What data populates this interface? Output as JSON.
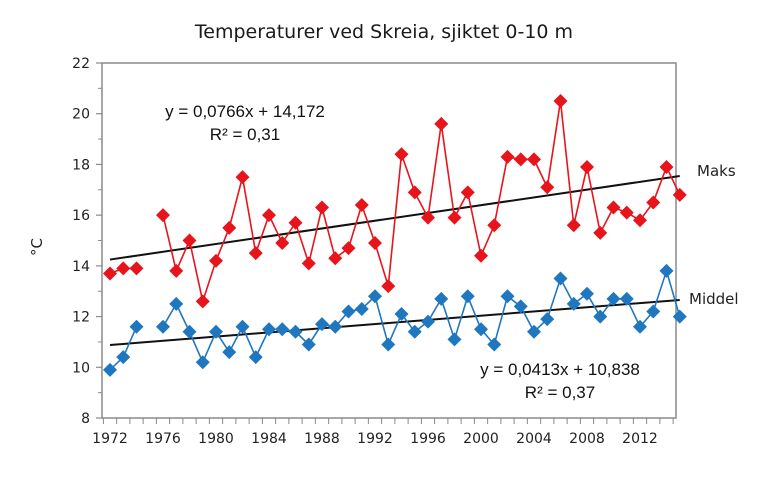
{
  "chart_data": {
    "type": "line",
    "title": "Temperaturer  ved Skreia, sjiktet 0-10 m",
    "xlabel": "",
    "ylabel": "°C",
    "ylim": [
      8,
      22
    ],
    "yticks": [
      8,
      10,
      12,
      14,
      16,
      18,
      20,
      22
    ],
    "xlim": [
      1972,
      2015
    ],
    "xtick_labels": [
      "1972",
      "1976",
      "1980",
      "1984",
      "1988",
      "1992",
      "1996",
      "2000",
      "2004",
      "2008",
      "2012"
    ],
    "grid": false,
    "x": [
      1972,
      1973,
      1974,
      1975,
      1976,
      1977,
      1978,
      1979,
      1980,
      1981,
      1982,
      1983,
      1984,
      1985,
      1986,
      1987,
      1988,
      1989,
      1990,
      1991,
      1992,
      1993,
      1994,
      1995,
      1996,
      1997,
      1998,
      1999,
      2000,
      2001,
      2002,
      2003,
      2004,
      2005,
      2006,
      2007,
      2008,
      2009,
      2010,
      2011,
      2012,
      2013,
      2014,
      2015
    ],
    "series": [
      {
        "name": "Maks",
        "color": "#e8141c",
        "marker": "diamond",
        "values": [
          13.7,
          13.9,
          13.9,
          null,
          16.0,
          13.8,
          15.0,
          12.6,
          14.2,
          15.5,
          17.5,
          14.5,
          16.0,
          14.9,
          15.7,
          14.1,
          16.3,
          14.3,
          14.7,
          16.4,
          14.9,
          13.2,
          18.4,
          16.9,
          15.9,
          19.6,
          15.9,
          16.9,
          14.4,
          15.6,
          18.3,
          18.2,
          18.2,
          17.1,
          20.5,
          15.6,
          17.9,
          15.3,
          16.3,
          16.1,
          15.8,
          16.5,
          17.9,
          16.8
        ],
        "trendline": {
          "slope": 0.0766,
          "intercept": 14.172,
          "equation": "y = 0,0766x + 14,172",
          "r2": "R² = 0,31"
        }
      },
      {
        "name": "Middel",
        "color": "#1f77c0",
        "marker": "diamond",
        "values": [
          9.9,
          10.4,
          11.6,
          null,
          11.6,
          12.5,
          11.4,
          10.2,
          11.4,
          10.6,
          11.6,
          10.4,
          11.5,
          11.5,
          11.4,
          10.9,
          11.7,
          11.6,
          12.2,
          12.3,
          12.8,
          10.9,
          12.1,
          11.4,
          11.8,
          12.7,
          11.1,
          12.8,
          11.5,
          10.9,
          12.8,
          12.4,
          11.4,
          11.9,
          13.5,
          12.5,
          12.9,
          12.0,
          12.7,
          12.7,
          11.6,
          12.2,
          13.8,
          12.0
        ],
        "trendline": {
          "slope": 0.0413,
          "intercept": 10.838,
          "equation": "y = 0,0413x + 10,838",
          "r2": "R² = 0,37"
        }
      }
    ],
    "legend": "direct labels at right end of series"
  }
}
